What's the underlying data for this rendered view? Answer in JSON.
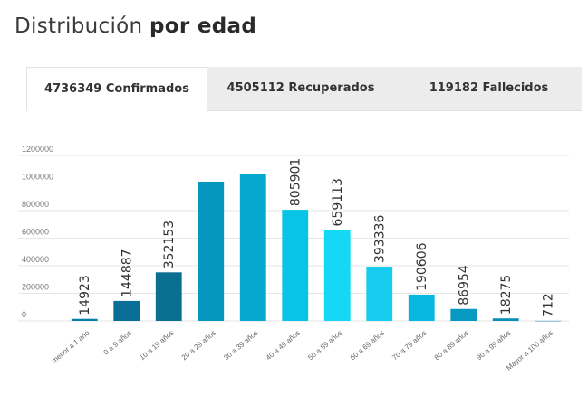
{
  "title": {
    "regular": "Distribución",
    "bold": "por edad"
  },
  "tabs": [
    {
      "label": "4736349 Confirmados",
      "active": true
    },
    {
      "label": "4505112 Recuperados",
      "active": false
    },
    {
      "label": "119182 Fallecidos",
      "active": false
    }
  ],
  "colors": {
    "tab_bar": "#ececec",
    "grid": "#e6e6e6"
  },
  "chart_data": {
    "type": "bar",
    "categories": [
      "menor a 1 año",
      "0 a 9 años",
      "10 a 19 años",
      "20 a 29 años",
      "30 a 39 años",
      "40 a 49 años",
      "50 a 59 años",
      "60 a 69 años",
      "70 a 79 años",
      "80 a 89 años",
      "90 a 99 años",
      "Mayor a 100 años"
    ],
    "values": [
      14923,
      144887,
      352153,
      1010000,
      1065000,
      805901,
      659113,
      393336,
      190606,
      86954,
      18275,
      712
    ],
    "data_labels": [
      "14923",
      "144887",
      "352153",
      "",
      "",
      "805901",
      "659113",
      "393336",
      "190606",
      "86954",
      "18275",
      "712"
    ],
    "colors": [
      "#0a7fa6",
      "#0a6f96",
      "#0b6f92",
      "#0597bd",
      "#05a8cf",
      "#08c4e6",
      "#14d8f5",
      "#16cbee",
      "#08b7e0",
      "#0899c2",
      "#088fb8",
      "#0a7fa6"
    ],
    "ylim": [
      0,
      1200000
    ],
    "yticks": [
      0,
      200000,
      400000,
      600000,
      800000,
      1000000,
      1200000
    ],
    "ytick_labels": [
      "0",
      "200000",
      "400000",
      "600000",
      "800000",
      "1000000",
      "1200000"
    ],
    "grid": true,
    "legend": "none"
  }
}
